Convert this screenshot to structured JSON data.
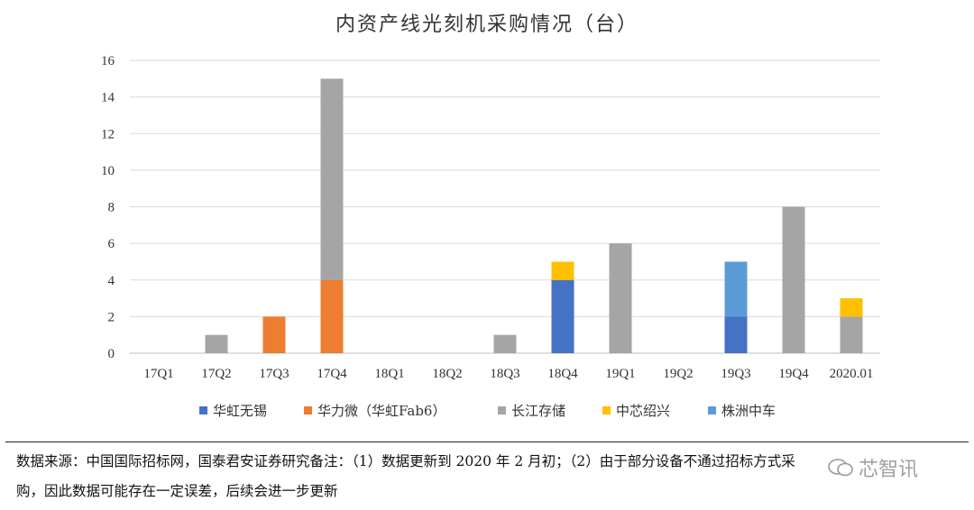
{
  "chart_data": {
    "type": "bar",
    "stacked": true,
    "title": "内资产线光刻机采购情况（台）",
    "categories": [
      "17Q1",
      "17Q2",
      "17Q3",
      "17Q4",
      "18Q1",
      "18Q2",
      "18Q3",
      "18Q4",
      "19Q1",
      "19Q2",
      "19Q3",
      "19Q4",
      "2020.01"
    ],
    "series": [
      {
        "name": "华虹无锡",
        "color": "#4472c4",
        "values": [
          0,
          0,
          0,
          0,
          0,
          0,
          0,
          4,
          0,
          0,
          2,
          0,
          0
        ]
      },
      {
        "name": "华力微（华虹Fab6）",
        "color": "#ed7d31",
        "values": [
          0,
          0,
          2,
          4,
          0,
          0,
          0,
          0,
          0,
          0,
          0,
          0,
          0
        ]
      },
      {
        "name": "长江存储",
        "color": "#a5a5a5",
        "values": [
          0,
          1,
          0,
          11,
          0,
          0,
          1,
          0,
          6,
          0,
          0,
          8,
          2
        ]
      },
      {
        "name": "中芯绍兴",
        "color": "#ffc000",
        "values": [
          0,
          0,
          0,
          0,
          0,
          0,
          0,
          1,
          0,
          0,
          0,
          0,
          1
        ]
      },
      {
        "name": "株洲中车",
        "color": "#5b9bd5",
        "values": [
          0,
          0,
          0,
          0,
          0,
          0,
          0,
          0,
          0,
          0,
          3,
          0,
          0
        ]
      }
    ],
    "ylim": [
      0,
      16
    ],
    "yticks": [
      0,
      2,
      4,
      6,
      8,
      10,
      12,
      14,
      16
    ],
    "grid": true,
    "legend_position": "bottom"
  },
  "note": {
    "line1": "数据来源：中国国际招标网，国泰君安证券研究备注：（1）数据更新到 2020 年 2 月初；（2）由于部分设备不通过招标方式采",
    "line2": "购，因此数据可能存在一定误差，后续会进一步更新"
  },
  "watermark": {
    "text": "芯智讯"
  }
}
